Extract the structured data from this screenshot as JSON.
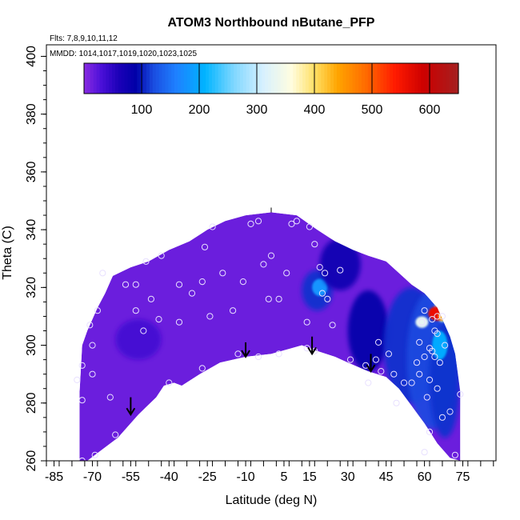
{
  "chart_data": {
    "type": "heatmap",
    "title": "ATOM3 Northbound nButane_PFP",
    "subtitle_flights": "Flts: 7,8,9,10,11,12",
    "subtitle_dates": "MMDD: 1014,1017,1019,1020,1023,1025",
    "xlabel": "Latitude (deg N)",
    "ylabel": "Theta (C)",
    "xlim": [
      -88,
      88
    ],
    "ylim": [
      260,
      404
    ],
    "x_ticks": [
      -85,
      -70,
      -55,
      -40,
      -25,
      -10,
      5,
      15,
      30,
      45,
      60,
      75
    ],
    "y_ticks": [
      260,
      280,
      300,
      320,
      340,
      360,
      380,
      400
    ],
    "colorbar": {
      "range": [
        0,
        650
      ],
      "ticks": [
        100,
        200,
        300,
        400,
        500,
        600
      ],
      "stops": [
        {
          "v": 0,
          "c": "#8a2be2"
        },
        {
          "v": 30,
          "c": "#4b10d8"
        },
        {
          "v": 60,
          "c": "#1c00b8"
        },
        {
          "v": 90,
          "c": "#0000a8"
        },
        {
          "v": 120,
          "c": "#1a4ce0"
        },
        {
          "v": 160,
          "c": "#1e80ff"
        },
        {
          "v": 210,
          "c": "#00b4ff"
        },
        {
          "v": 260,
          "c": "#7fd7ff"
        },
        {
          "v": 310,
          "c": "#d6f0ff"
        },
        {
          "v": 360,
          "c": "#fffde0"
        },
        {
          "v": 400,
          "c": "#ffe066"
        },
        {
          "v": 440,
          "c": "#ffa500"
        },
        {
          "v": 490,
          "c": "#ff6a00"
        },
        {
          "v": 540,
          "c": "#ff1a00"
        },
        {
          "v": 590,
          "c": "#cc0000"
        },
        {
          "v": 650,
          "c": "#a52020"
        }
      ]
    },
    "background_value": 15,
    "top_boundary": [
      [
        -75,
        284
      ],
      [
        -74,
        300
      ],
      [
        -72,
        305
      ],
      [
        -68,
        313
      ],
      [
        -65,
        318
      ],
      [
        -62,
        324
      ],
      [
        -55,
        327
      ],
      [
        -48,
        329
      ],
      [
        -40,
        333
      ],
      [
        -32,
        336
      ],
      [
        -25,
        340
      ],
      [
        -18,
        343
      ],
      [
        -10,
        345
      ],
      [
        0,
        346
      ],
      [
        10,
        345
      ],
      [
        18,
        340
      ],
      [
        25,
        336
      ],
      [
        32,
        333
      ],
      [
        38,
        331
      ],
      [
        45,
        329
      ],
      [
        50,
        325
      ],
      [
        55,
        321
      ],
      [
        60,
        318
      ],
      [
        65,
        313
      ],
      [
        70,
        303
      ],
      [
        72,
        297
      ],
      [
        74,
        284
      ]
    ],
    "bottom_boundary": [
      [
        -75,
        260
      ],
      [
        -72,
        260
      ],
      [
        -60,
        268
      ],
      [
        -52,
        276
      ],
      [
        -45,
        282
      ],
      [
        -42,
        286
      ],
      [
        -38,
        287
      ],
      [
        -35,
        286
      ],
      [
        -28,
        290
      ],
      [
        -20,
        294
      ],
      [
        -10,
        296
      ],
      [
        0,
        297
      ],
      [
        8,
        299
      ],
      [
        12,
        300
      ],
      [
        18,
        298
      ],
      [
        25,
        296
      ],
      [
        30,
        294
      ],
      [
        38,
        291
      ],
      [
        45,
        289
      ],
      [
        50,
        285
      ],
      [
        55,
        279
      ],
      [
        60,
        273
      ],
      [
        65,
        266
      ],
      [
        70,
        261
      ],
      [
        74,
        260
      ]
    ],
    "anomalies": [
      {
        "lat": -52,
        "theta": 302,
        "value": 35,
        "rx": 9,
        "ry": 7
      },
      {
        "lat": 18,
        "theta": 319,
        "value": 110,
        "rx": 6,
        "ry": 7
      },
      {
        "lat": 19,
        "theta": 320,
        "value": 180,
        "rx": 3,
        "ry": 3
      },
      {
        "lat": 27,
        "theta": 328,
        "value": 75,
        "rx": 8,
        "ry": 9
      },
      {
        "lat": 38,
        "theta": 305,
        "value": 90,
        "rx": 8,
        "ry": 14
      },
      {
        "lat": 55,
        "theta": 300,
        "value": 110,
        "rx": 11,
        "ry": 20
      },
      {
        "lat": 63,
        "theta": 295,
        "value": 120,
        "rx": 10,
        "ry": 24
      },
      {
        "lat": 68,
        "theta": 288,
        "value": 110,
        "rx": 6,
        "ry": 20
      },
      {
        "lat": 66,
        "theta": 300,
        "value": 200,
        "rx": 3,
        "ry": 5
      },
      {
        "lat": 67,
        "theta": 313,
        "value": 260,
        "rx": 3,
        "ry": 5
      },
      {
        "lat": 65,
        "theta": 311,
        "value": 560,
        "rx": 3.5,
        "ry": 2.5
      },
      {
        "lat": 67,
        "theta": 310,
        "value": 430,
        "rx": 1.6,
        "ry": 1.6
      },
      {
        "lat": 59,
        "theta": 308,
        "value": 330,
        "rx": 2.5,
        "ry": 2
      }
    ],
    "sample_points": [
      [
        -74,
        260
      ],
      [
        -69,
        262
      ],
      [
        -74,
        281
      ],
      [
        -76,
        288
      ],
      [
        -74,
        293
      ],
      [
        -70,
        290
      ],
      [
        -70,
        300
      ],
      [
        -71,
        307
      ],
      [
        -68,
        312
      ],
      [
        -66,
        325
      ],
      [
        -57,
        321
      ],
      [
        -53,
        321
      ],
      [
        -53,
        312
      ],
      [
        -49,
        329
      ],
      [
        -43,
        331
      ],
      [
        -47,
        316
      ],
      [
        -44,
        309
      ],
      [
        -36,
        308
      ],
      [
        -50,
        305
      ],
      [
        -40,
        287
      ],
      [
        -63,
        282
      ],
      [
        -61,
        269
      ],
      [
        -36,
        321
      ],
      [
        -26,
        334
      ],
      [
        -27,
        322
      ],
      [
        -31,
        318
      ],
      [
        -24,
        310
      ],
      [
        -19,
        325
      ],
      [
        -15,
        312
      ],
      [
        -11,
        322
      ],
      [
        -23,
        341
      ],
      [
        -8,
        342
      ],
      [
        -5,
        343
      ],
      [
        -3,
        328
      ],
      [
        0,
        331
      ],
      [
        3,
        316
      ],
      [
        -1,
        316
      ],
      [
        -13,
        297
      ],
      [
        -5,
        296
      ],
      [
        3,
        297
      ],
      [
        -27,
        292
      ],
      [
        6,
        325
      ],
      [
        8,
        342
      ],
      [
        10,
        343
      ],
      [
        15,
        341
      ],
      [
        17,
        335
      ],
      [
        19,
        327
      ],
      [
        21,
        325
      ],
      [
        20,
        318
      ],
      [
        22,
        316
      ],
      [
        27,
        326
      ],
      [
        14,
        308
      ],
      [
        24,
        307
      ],
      [
        14,
        299
      ],
      [
        17,
        298
      ],
      [
        31,
        295
      ],
      [
        37,
        293
      ],
      [
        41,
        295
      ],
      [
        42,
        301
      ],
      [
        46,
        297
      ],
      [
        43,
        291
      ],
      [
        48,
        290
      ],
      [
        52,
        287
      ],
      [
        55,
        287
      ],
      [
        58,
        290
      ],
      [
        62,
        288
      ],
      [
        57,
        294
      ],
      [
        60,
        296
      ],
      [
        58,
        301
      ],
      [
        62,
        299
      ],
      [
        63,
        298
      ],
      [
        64,
        296
      ],
      [
        65,
        304
      ],
      [
        59,
        308
      ],
      [
        63,
        309
      ],
      [
        65,
        310
      ],
      [
        67,
        310
      ],
      [
        60,
        312
      ],
      [
        64,
        305
      ],
      [
        68,
        300
      ],
      [
        66,
        294
      ],
      [
        61,
        282
      ],
      [
        67,
        275
      ],
      [
        62,
        270
      ],
      [
        72,
        262
      ],
      [
        74,
        283
      ],
      [
        70,
        277
      ],
      [
        65,
        285
      ],
      [
        49,
        280
      ],
      [
        38,
        287
      ],
      [
        60,
        263
      ]
    ],
    "arrows": [
      {
        "lat": -55,
        "theta_from": 282,
        "theta_to": 276
      },
      {
        "lat": -10,
        "theta_from": 301,
        "theta_to": 296
      },
      {
        "lat": 16,
        "theta_from": 303,
        "theta_to": 297
      },
      {
        "lat": 39,
        "theta_from": 297,
        "theta_to": 291
      }
    ],
    "peak_marker": {
      "lat": 0,
      "theta": 346
    }
  }
}
